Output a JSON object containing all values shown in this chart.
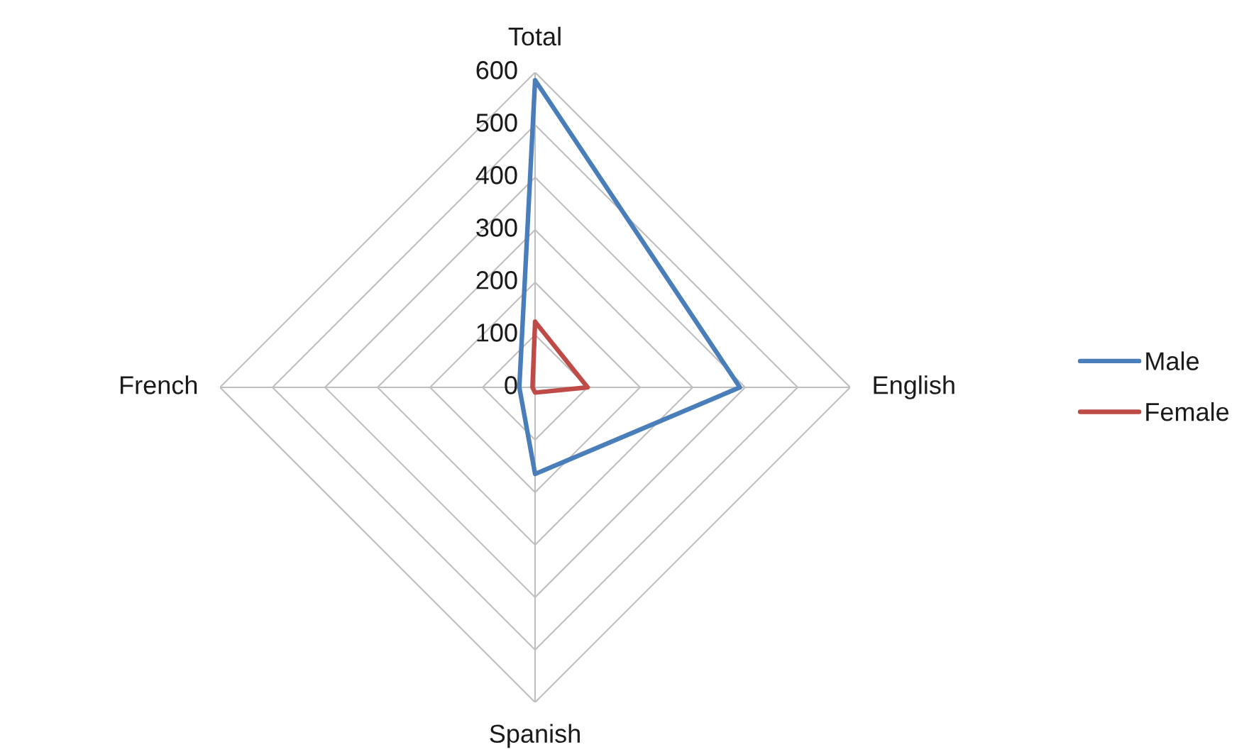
{
  "chart_data": {
    "type": "radar",
    "categories": [
      "Total",
      "English",
      "Spanish",
      "French"
    ],
    "series": [
      {
        "name": "Male",
        "color": "#4a7ebb",
        "values": [
          585,
          390,
          165,
          30
        ]
      },
      {
        "name": "Female",
        "color": "#be4b48",
        "values": [
          125,
          100,
          10,
          5
        ]
      }
    ],
    "ylim": [
      0,
      600
    ],
    "yticks": [
      0,
      100,
      200,
      300,
      400,
      500,
      600
    ],
    "grid": true,
    "legend": "right"
  }
}
